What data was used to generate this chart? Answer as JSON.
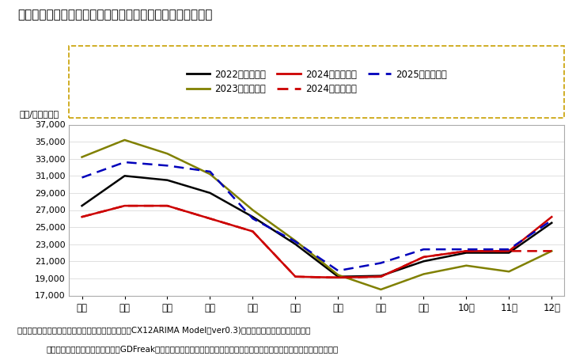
{
  "title": "「二人以上世帯」の１世帯当たり消費支出額の１２ケ月予測",
  "ylabel": "（円/月・世帯）",
  "xlabel_note1": "出所：家計調査（二人以上世帯）（総務省）を基にCX12ARIMA Model（ver0.3)により各月の曜日構成、月末曜",
  "xlabel_note2": "日、うるう年の違いを織り込んでGDFreak予測。なお、東日本大震災後の影響については、モデルにダミー変数を立て対応。",
  "months": [
    "１月",
    "２月",
    "３月",
    "４月",
    "５月",
    "６月",
    "７月",
    "８月",
    "９月",
    "10月",
    "11月",
    "12月"
  ],
  "series_2022": [
    27500,
    31000,
    30500,
    29000,
    26200,
    23000,
    19200,
    19300,
    21000,
    22000,
    22000,
    25500
  ],
  "series_2023": [
    33200,
    35200,
    33600,
    31200,
    27000,
    23400,
    19400,
    17700,
    19500,
    20500,
    19800,
    22200
  ],
  "series_2024_actual": [
    26200,
    27500,
    27500,
    26000,
    24500,
    19200,
    19100,
    19200,
    21500,
    22200,
    22200,
    26200
  ],
  "series_2024_pred": [
    26200,
    27500,
    27500,
    26000,
    24500,
    19200,
    19100,
    19200,
    21500,
    22200,
    22200,
    22200
  ],
  "series_2025_pred": [
    30800,
    32600,
    32200,
    31500,
    26000,
    23300,
    19900,
    20800,
    22400,
    22400,
    22400,
    25800
  ],
  "color_2022": "#000000",
  "color_2023": "#808000",
  "color_2024": "#cc0000",
  "color_2025": "#0000bb",
  "ylim": [
    17000,
    37000
  ],
  "yticks": [
    17000,
    19000,
    21000,
    23000,
    25000,
    27000,
    29000,
    31000,
    33000,
    35000,
    37000
  ],
  "legend_labels": [
    "2022年（実績）",
    "2023年（実績）",
    "2024年（実績）",
    "2024年（予測）",
    "2025年（予測）"
  ]
}
